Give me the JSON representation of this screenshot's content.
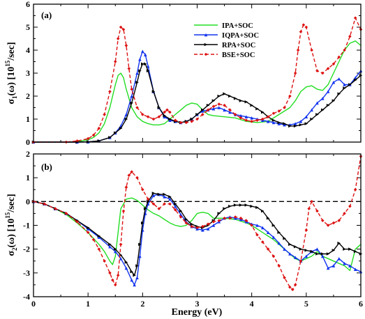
{
  "chart_data": [
    {
      "type": "line",
      "panel_label": "(a)",
      "ylabel_main": "σ",
      "ylabel_sub": "1",
      "ylabel_tail": "(ω) [10",
      "ylabel_sup": "15",
      "ylabel_end": "/sec]",
      "xlim": [
        0,
        6
      ],
      "ylim": [
        0,
        6
      ],
      "y_ticks": [
        0,
        1,
        2,
        3,
        4,
        5,
        6
      ],
      "legend_position": "top-right",
      "series": [
        {
          "name": "IPA+SOC",
          "color": "#22dd22",
          "marker": "none",
          "dashed": false,
          "x": [
            0,
            0.6,
            0.8,
            1.0,
            1.1,
            1.2,
            1.3,
            1.4,
            1.5,
            1.55,
            1.6,
            1.65,
            1.7,
            1.8,
            1.9,
            2.0,
            2.1,
            2.2,
            2.3,
            2.4,
            2.5,
            2.6,
            2.7,
            2.8,
            2.9,
            3.0,
            3.1,
            3.2,
            3.3,
            3.5,
            3.7,
            3.9,
            4.1,
            4.3,
            4.5,
            4.7,
            4.8,
            4.9,
            5.0,
            5.1,
            5.2,
            5.3,
            5.4,
            5.5,
            5.6,
            5.7,
            5.8,
            5.9,
            6.0
          ],
          "y": [
            0,
            0,
            0.02,
            0.1,
            0.2,
            0.4,
            0.8,
            1.5,
            2.5,
            2.9,
            3.0,
            2.8,
            2.3,
            1.5,
            1.1,
            0.9,
            0.8,
            0.75,
            0.75,
            0.8,
            1.0,
            1.2,
            1.4,
            1.6,
            1.7,
            1.65,
            1.4,
            1.2,
            1.15,
            1.1,
            1.05,
            0.9,
            0.85,
            0.9,
            1.2,
            1.5,
            1.8,
            2.2,
            2.4,
            2.45,
            2.3,
            2.25,
            2.5,
            3.0,
            3.5,
            4.0,
            4.3,
            4.4,
            4.2
          ]
        },
        {
          "name": "IQPA+SOC",
          "color": "#1133ee",
          "marker": "triangle",
          "dashed": false,
          "x": [
            0,
            0.8,
            1.0,
            1.2,
            1.4,
            1.5,
            1.6,
            1.7,
            1.8,
            1.9,
            1.95,
            2.0,
            2.05,
            2.1,
            2.2,
            2.3,
            2.4,
            2.5,
            2.6,
            2.7,
            2.8,
            2.9,
            3.0,
            3.1,
            3.2,
            3.3,
            3.4,
            3.5,
            3.6,
            3.7,
            3.8,
            3.9,
            4.0,
            4.1,
            4.2,
            4.3,
            4.4,
            4.5,
            4.6,
            4.7,
            4.8,
            4.9,
            5.0,
            5.1,
            5.2,
            5.3,
            5.4,
            5.5,
            5.6,
            5.7,
            5.8,
            5.9,
            6.0
          ],
          "y": [
            0,
            0,
            0.01,
            0.05,
            0.2,
            0.4,
            0.7,
            1.2,
            2.0,
            3.0,
            3.6,
            3.95,
            3.8,
            3.3,
            2.2,
            1.5,
            1.1,
            0.95,
            0.9,
            0.85,
            0.9,
            1.0,
            1.2,
            1.35,
            1.4,
            1.45,
            1.5,
            1.4,
            1.3,
            1.2,
            1.15,
            1.1,
            1.05,
            1.0,
            0.95,
            0.9,
            0.85,
            0.8,
            0.75,
            0.75,
            0.8,
            0.9,
            1.1,
            1.4,
            1.7,
            1.9,
            2.2,
            2.6,
            2.75,
            2.5,
            2.5,
            2.8,
            3.1
          ]
        },
        {
          "name": "RPA+SOC",
          "color": "#000000",
          "marker": "triangle-right",
          "dashed": false,
          "x": [
            0,
            0.8,
            1.0,
            1.2,
            1.4,
            1.5,
            1.6,
            1.7,
            1.8,
            1.9,
            1.95,
            2.0,
            2.05,
            2.1,
            2.2,
            2.3,
            2.4,
            2.5,
            2.6,
            2.7,
            2.8,
            2.9,
            3.0,
            3.1,
            3.2,
            3.3,
            3.4,
            3.5,
            3.6,
            3.7,
            3.8,
            3.9,
            4.0,
            4.1,
            4.2,
            4.3,
            4.4,
            4.5,
            4.6,
            4.7,
            4.8,
            4.9,
            5.0,
            5.1,
            5.2,
            5.3,
            5.4,
            5.5,
            5.6,
            5.7,
            5.8,
            5.9,
            6.0
          ],
          "y": [
            0,
            0,
            0.01,
            0.05,
            0.2,
            0.4,
            0.6,
            1.0,
            1.7,
            2.6,
            3.1,
            3.4,
            3.4,
            3.1,
            2.2,
            1.5,
            1.15,
            1.0,
            0.9,
            0.85,
            0.9,
            1.0,
            1.2,
            1.4,
            1.6,
            1.8,
            2.0,
            2.1,
            2.0,
            1.9,
            1.8,
            1.75,
            1.6,
            1.45,
            1.3,
            1.1,
            0.95,
            0.85,
            0.8,
            0.7,
            0.7,
            0.75,
            0.8,
            1.0,
            1.2,
            1.4,
            1.6,
            1.8,
            2.1,
            2.35,
            2.5,
            2.7,
            2.9
          ]
        },
        {
          "name": "BSE+SOC",
          "color": "#dd1111",
          "marker": "diamond",
          "dashed": true,
          "x": [
            0,
            0.6,
            0.8,
            1.0,
            1.1,
            1.2,
            1.3,
            1.4,
            1.5,
            1.55,
            1.6,
            1.65,
            1.7,
            1.75,
            1.8,
            1.9,
            2.0,
            2.1,
            2.2,
            2.3,
            2.4,
            2.45,
            2.5,
            2.6,
            2.7,
            2.8,
            2.9,
            3.0,
            3.1,
            3.2,
            3.3,
            3.4,
            3.5,
            3.6,
            3.7,
            3.8,
            3.9,
            4.0,
            4.1,
            4.2,
            4.3,
            4.4,
            4.5,
            4.6,
            4.7,
            4.8,
            4.85,
            4.9,
            4.95,
            5.0,
            5.1,
            5.2,
            5.3,
            5.4,
            5.5,
            5.6,
            5.7,
            5.8,
            5.9,
            6.0
          ],
          "y": [
            0,
            0,
            0.05,
            0.15,
            0.3,
            0.6,
            1.2,
            2.2,
            3.5,
            4.5,
            5.0,
            4.9,
            4.2,
            3.2,
            2.3,
            1.5,
            1.2,
            1.1,
            1.0,
            1.1,
            1.3,
            1.4,
            1.3,
            0.95,
            0.85,
            0.85,
            0.9,
            1.0,
            1.2,
            1.4,
            1.55,
            1.65,
            1.6,
            1.4,
            1.2,
            1.05,
            0.95,
            0.9,
            0.95,
            1.0,
            1.1,
            1.25,
            1.35,
            1.5,
            2.0,
            3.0,
            4.0,
            4.8,
            5.1,
            5.0,
            4.0,
            3.1,
            3.0,
            3.2,
            3.4,
            3.7,
            4.0,
            4.6,
            5.4,
            4.9
          ]
        }
      ]
    },
    {
      "type": "line",
      "panel_label": "(b)",
      "ylabel_main": "σ",
      "ylabel_sub": "2",
      "ylabel_tail": "(ω) [10",
      "ylabel_sup": "15",
      "ylabel_end": "/sec]",
      "xlabel": "Energy (eV)",
      "xlim": [
        0,
        6
      ],
      "ylim": [
        -4,
        2
      ],
      "x_ticks": [
        0,
        1,
        2,
        3,
        4,
        5,
        6
      ],
      "y_ticks": [
        -4,
        -3,
        -2,
        -1,
        0,
        1,
        2
      ],
      "zero_line": true,
      "series": [
        {
          "name": "IPA+SOC",
          "color": "#22dd22",
          "marker": "none",
          "dashed": false,
          "x": [
            0,
            0.2,
            0.4,
            0.6,
            0.8,
            1.0,
            1.2,
            1.3,
            1.4,
            1.45,
            1.5,
            1.55,
            1.6,
            1.7,
            1.8,
            1.9,
            2.0,
            2.1,
            2.2,
            2.3,
            2.4,
            2.5,
            2.6,
            2.7,
            2.8,
            2.9,
            3.0,
            3.1,
            3.2,
            3.3,
            3.5,
            3.7,
            3.9,
            4.0,
            4.2,
            4.4,
            4.6,
            4.8,
            4.9,
            5.0,
            5.1,
            5.2,
            5.3,
            5.4,
            5.5,
            5.6,
            5.7,
            5.8,
            5.9,
            6.0
          ],
          "y": [
            0,
            -0.1,
            -0.3,
            -0.55,
            -0.9,
            -1.3,
            -1.8,
            -2.1,
            -2.5,
            -2.65,
            -2.3,
            -1.3,
            -0.3,
            0.1,
            0.15,
            0.05,
            -0.15,
            -0.35,
            -0.5,
            -0.6,
            -0.75,
            -0.9,
            -1.0,
            -1.05,
            -1.0,
            -0.8,
            -0.5,
            -0.45,
            -0.5,
            -0.7,
            -0.7,
            -0.75,
            -0.9,
            -1.0,
            -1.3,
            -1.6,
            -2.0,
            -2.4,
            -2.5,
            -2.4,
            -2.3,
            -2.1,
            -2.3,
            -2.4,
            -2.5,
            -2.6,
            -2.7,
            -2.9,
            -2.0,
            -1.8
          ]
        },
        {
          "name": "IQPA+SOC",
          "color": "#1133ee",
          "marker": "triangle",
          "dashed": false,
          "x": [
            0,
            0.2,
            0.4,
            0.6,
            0.8,
            1.0,
            1.2,
            1.4,
            1.5,
            1.6,
            1.7,
            1.8,
            1.85,
            1.9,
            1.95,
            2.0,
            2.05,
            2.1,
            2.2,
            2.3,
            2.4,
            2.5,
            2.6,
            2.7,
            2.8,
            2.9,
            3.0,
            3.1,
            3.2,
            3.3,
            3.4,
            3.5,
            3.6,
            3.7,
            3.8,
            3.9,
            4.0,
            4.1,
            4.2,
            4.3,
            4.4,
            4.5,
            4.6,
            4.7,
            4.8,
            4.9,
            5.0,
            5.1,
            5.2,
            5.3,
            5.4,
            5.5,
            5.6,
            5.7,
            5.8,
            5.9,
            6.0
          ],
          "y": [
            0,
            -0.1,
            -0.3,
            -0.5,
            -0.8,
            -1.15,
            -1.5,
            -1.9,
            -2.1,
            -2.4,
            -2.8,
            -3.3,
            -3.5,
            -3.2,
            -2.3,
            -1.2,
            -0.5,
            -0.1,
            0.25,
            0.3,
            0.2,
            0.1,
            -0.2,
            -0.55,
            -0.85,
            -1.05,
            -1.15,
            -1.2,
            -1.15,
            -1.0,
            -0.85,
            -0.7,
            -0.65,
            -0.7,
            -0.75,
            -0.85,
            -0.95,
            -1.0,
            -1.1,
            -1.3,
            -1.5,
            -1.75,
            -2.0,
            -2.2,
            -2.35,
            -2.5,
            -2.3,
            -2.1,
            -2.0,
            -2.3,
            -2.8,
            -2.7,
            -2.4,
            -2.6,
            -2.7,
            -2.85,
            -2.95
          ]
        },
        {
          "name": "RPA+SOC",
          "color": "#000000",
          "marker": "triangle-right",
          "dashed": false,
          "x": [
            0,
            0.2,
            0.4,
            0.6,
            0.8,
            1.0,
            1.2,
            1.4,
            1.5,
            1.6,
            1.7,
            1.8,
            1.85,
            1.9,
            1.95,
            2.0,
            2.05,
            2.1,
            2.2,
            2.3,
            2.4,
            2.5,
            2.6,
            2.7,
            2.8,
            2.9,
            3.0,
            3.1,
            3.2,
            3.3,
            3.4,
            3.5,
            3.6,
            3.7,
            3.8,
            3.9,
            4.0,
            4.1,
            4.2,
            4.3,
            4.4,
            4.5,
            4.6,
            4.7,
            4.8,
            4.9,
            5.0,
            5.1,
            5.2,
            5.3,
            5.4,
            5.5,
            5.6,
            5.7,
            5.8,
            5.9,
            6.0
          ],
          "y": [
            0,
            -0.1,
            -0.3,
            -0.5,
            -0.8,
            -1.1,
            -1.45,
            -1.8,
            -2.0,
            -2.25,
            -2.55,
            -2.95,
            -3.1,
            -2.7,
            -1.8,
            -0.9,
            -0.3,
            0.0,
            0.35,
            0.3,
            0.3,
            0.2,
            -0.1,
            -0.4,
            -0.75,
            -0.95,
            -1.05,
            -1.1,
            -1.0,
            -0.8,
            -0.5,
            -0.3,
            -0.2,
            -0.15,
            -0.15,
            -0.15,
            -0.2,
            -0.25,
            -0.4,
            -0.7,
            -1.0,
            -1.3,
            -1.55,
            -1.8,
            -1.9,
            -2.0,
            -2.05,
            -2.1,
            -2.2,
            -2.2,
            -2.2,
            -2.05,
            -1.75,
            -2.0,
            -2.0,
            -2.1,
            -2.2
          ]
        },
        {
          "name": "BSE+SOC",
          "color": "#dd1111",
          "marker": "diamond",
          "dashed": true,
          "x": [
            0,
            0.2,
            0.4,
            0.6,
            0.8,
            1.0,
            1.1,
            1.2,
            1.3,
            1.4,
            1.45,
            1.5,
            1.55,
            1.6,
            1.65,
            1.7,
            1.75,
            1.8,
            1.9,
            2.0,
            2.1,
            2.2,
            2.3,
            2.4,
            2.5,
            2.6,
            2.7,
            2.8,
            2.9,
            3.0,
            3.1,
            3.2,
            3.3,
            3.4,
            3.5,
            3.6,
            3.7,
            3.8,
            3.9,
            4.0,
            4.1,
            4.2,
            4.3,
            4.4,
            4.5,
            4.6,
            4.7,
            4.75,
            4.8,
            4.9,
            5.0,
            5.05,
            5.1,
            5.2,
            5.3,
            5.4,
            5.5,
            5.6,
            5.7,
            5.8,
            5.9,
            6.0
          ],
          "y": [
            0,
            -0.1,
            -0.3,
            -0.5,
            -0.85,
            -1.3,
            -1.6,
            -2.0,
            -2.5,
            -3.0,
            -3.3,
            -3.5,
            -3.1,
            -1.8,
            -0.4,
            0.6,
            1.1,
            1.25,
            1.0,
            0.5,
            0.1,
            -0.1,
            -0.3,
            -0.1,
            -0.1,
            -0.35,
            -0.65,
            -0.9,
            -1.05,
            -1.1,
            -1.05,
            -0.95,
            -0.85,
            -0.8,
            -0.7,
            -0.7,
            -0.65,
            -0.7,
            -0.8,
            -1.0,
            -1.4,
            -1.7,
            -2.0,
            -2.3,
            -2.7,
            -3.2,
            -3.6,
            -3.7,
            -3.5,
            -2.5,
            -1.2,
            -0.3,
            0.0,
            -0.4,
            -0.8,
            -1.0,
            -0.9,
            -0.8,
            -0.5,
            -0.2,
            0.5,
            1.9
          ]
        }
      ]
    }
  ]
}
